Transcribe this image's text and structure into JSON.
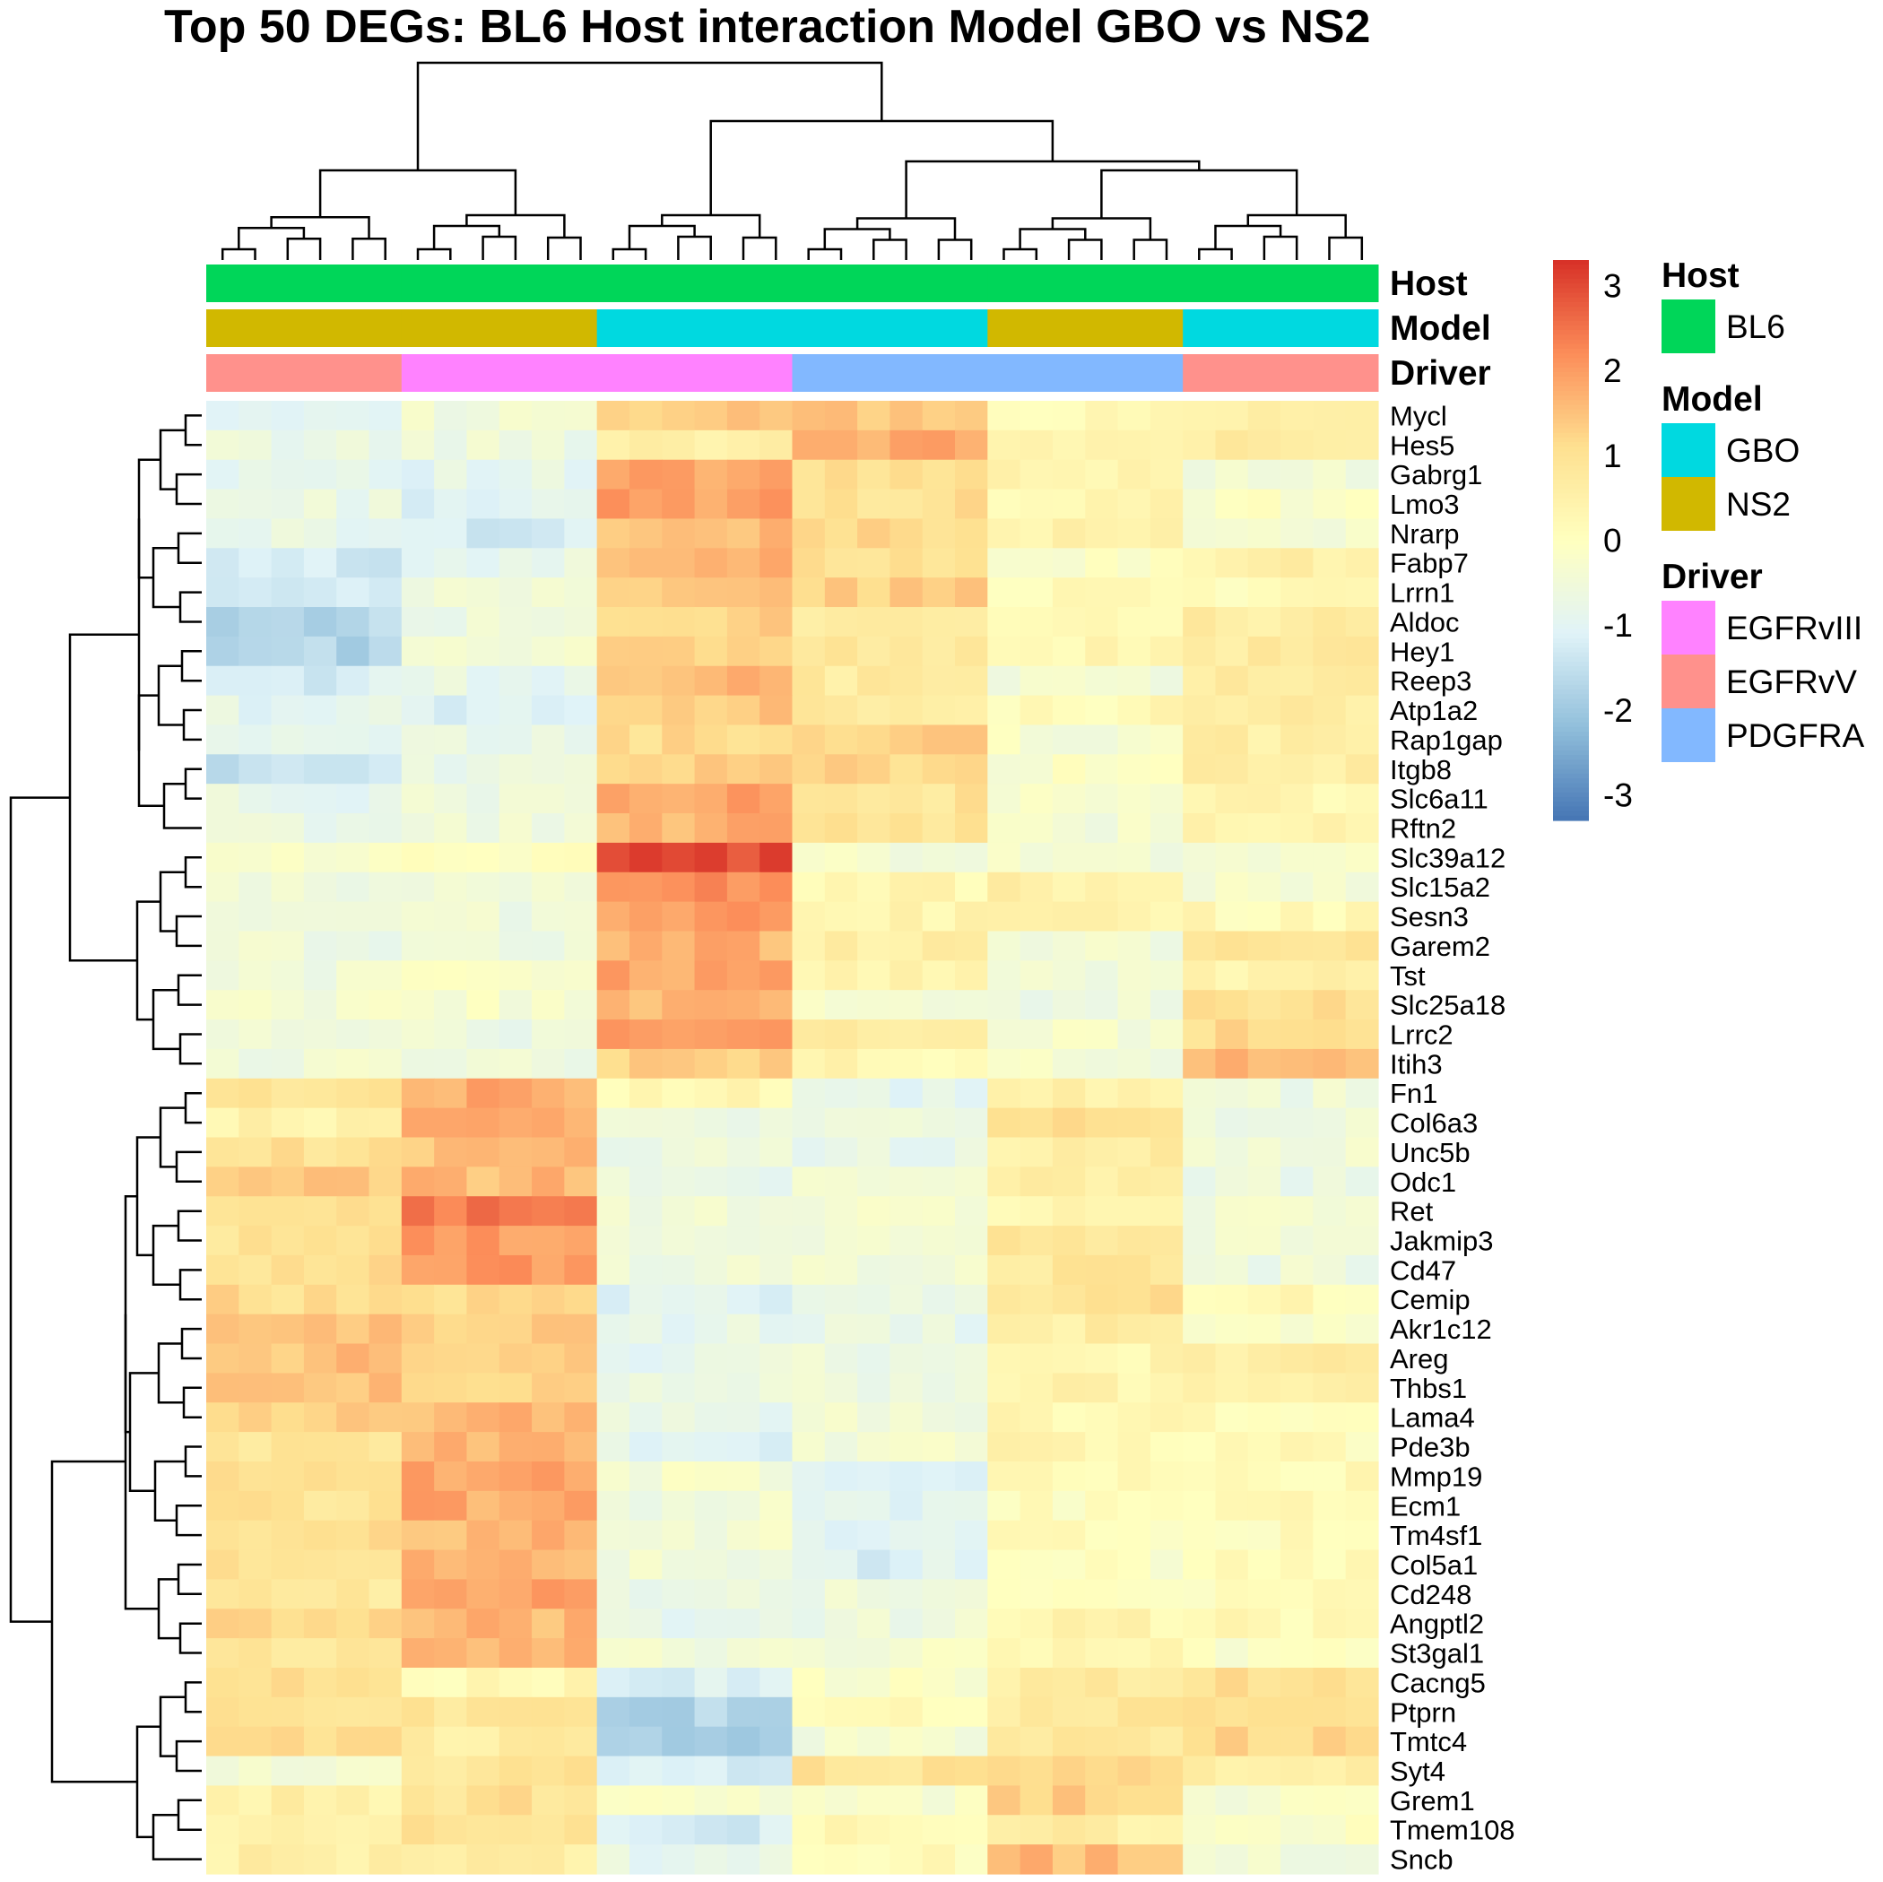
{
  "chart_data": {
    "type": "heatmap",
    "title": "Top 50 DEGs: BL6 Host interaction Model GBO vs NS2",
    "rows": [
      "Mycl",
      "Hes5",
      "Gabrg1",
      "Lmo3",
      "Nrarp",
      "Fabp7",
      "Lrrn1",
      "Aldoc",
      "Hey1",
      "Reep3",
      "Atp1a2",
      "Rap1gap",
      "Itgb8",
      "Slc6a11",
      "Rftn2",
      "Slc39a12",
      "Slc15a2",
      "Sesn3",
      "Garem2",
      "Tst",
      "Slc25a18",
      "Lrrc2",
      "Itih3",
      "Fn1",
      "Col6a3",
      "Unc5b",
      "Odc1",
      "Ret",
      "Jakmip3",
      "Cd47",
      "Cemip",
      "Akr1c12",
      "Areg",
      "Thbs1",
      "Lama4",
      "Pde3b",
      "Mmp19",
      "Ecm1",
      "Tm4sf1",
      "Col5a1",
      "Cd248",
      "Angptl2",
      "St3gal1",
      "Cacng5",
      "Ptprn",
      "Tmtc4",
      "Syt4",
      "Grem1",
      "Tmem108",
      "Sncb"
    ],
    "column_blocks": [
      {
        "model": "NS2",
        "driver": "EGFRvV",
        "host": "BL6",
        "n": 6
      },
      {
        "model": "NS2",
        "driver": "EGFRvIII",
        "host": "BL6",
        "n": 6
      },
      {
        "model": "GBO",
        "driver": "EGFRvIII",
        "host": "BL6",
        "n": 6
      },
      {
        "model": "GBO",
        "driver": "PDGFRA",
        "host": "BL6",
        "n": 6
      },
      {
        "model": "NS2",
        "driver": "PDGFRA",
        "host": "BL6",
        "n": 6
      },
      {
        "model": "GBO",
        "driver": "EGFRvV",
        "host": "BL6",
        "n": 6
      }
    ],
    "block_means": [
      [
        -0.8,
        -0.5,
        1.3,
        1.4,
        0.1,
        0.5
      ],
      [
        -0.7,
        -0.6,
        0.6,
        1.8,
        0.4,
        0.6
      ],
      [
        -0.8,
        -0.9,
        1.8,
        1.0,
        0.3,
        -0.4
      ],
      [
        -0.7,
        -1.0,
        1.9,
        1.0,
        0.3,
        -0.2
      ],
      [
        -0.8,
        -1.2,
        1.5,
        1.2,
        0.4,
        -0.4
      ],
      [
        -1.3,
        -0.8,
        1.6,
        1.1,
        -0.1,
        0.5
      ],
      [
        -1.4,
        -0.5,
        1.4,
        1.3,
        0.2,
        0.2
      ],
      [
        -1.7,
        -0.6,
        1.3,
        0.8,
        0.3,
        0.6
      ],
      [
        -1.7,
        -0.5,
        1.4,
        0.8,
        0.3,
        0.7
      ],
      [
        -1.2,
        -0.8,
        1.6,
        0.7,
        -0.4,
        0.6
      ],
      [
        -0.9,
        -1.1,
        1.4,
        0.8,
        0.2,
        0.7
      ],
      [
        -1.0,
        -0.8,
        1.1,
        1.3,
        -0.3,
        0.6
      ],
      [
        -1.5,
        -0.7,
        1.4,
        1.2,
        -0.2,
        0.6
      ],
      [
        -0.8,
        -0.6,
        1.9,
        0.9,
        -0.3,
        0.3
      ],
      [
        -0.7,
        -0.6,
        1.7,
        1.0,
        -0.4,
        0.5
      ],
      [
        -0.2,
        -0.1,
        2.9,
        -0.4,
        -0.4,
        -0.3
      ],
      [
        -0.6,
        -0.5,
        2.2,
        0.3,
        0.5,
        -0.4
      ],
      [
        -0.5,
        -0.6,
        2.0,
        0.4,
        0.3,
        0.2
      ],
      [
        -0.6,
        -0.6,
        1.7,
        0.6,
        -0.5,
        0.8
      ],
      [
        -0.5,
        -0.3,
        1.9,
        0.4,
        -0.4,
        0.4
      ],
      [
        -0.4,
        -0.3,
        1.7,
        -0.4,
        -0.6,
        1.0
      ],
      [
        -0.6,
        -0.6,
        1.9,
        0.6,
        -0.3,
        1.1
      ],
      [
        -0.5,
        -0.5,
        1.3,
        0.3,
        -0.4,
        1.6
      ],
      [
        1.0,
        1.8,
        0.3,
        -1.0,
        0.4,
        -0.6
      ],
      [
        0.4,
        1.8,
        -0.6,
        -0.6,
        1.0,
        -0.6
      ],
      [
        1.0,
        1.5,
        -0.6,
        -0.8,
        0.6,
        -0.5
      ],
      [
        1.3,
        1.6,
        -0.7,
        -0.5,
        0.6,
        -0.7
      ],
      [
        1.2,
        2.4,
        -0.5,
        -0.4,
        0.3,
        -0.4
      ],
      [
        0.9,
        2.0,
        -0.6,
        -0.5,
        0.9,
        -0.5
      ],
      [
        1.0,
        2.0,
        -0.5,
        -0.5,
        0.8,
        -0.6
      ],
      [
        1.1,
        1.2,
        -1.0,
        -0.8,
        1.0,
        0.2
      ],
      [
        1.4,
        1.3,
        -0.8,
        -0.8,
        0.6,
        -0.2
      ],
      [
        1.5,
        1.2,
        -0.8,
        -0.6,
        0.3,
        0.6
      ],
      [
        1.6,
        1.2,
        -0.7,
        -0.6,
        0.4,
        0.4
      ],
      [
        1.3,
        1.6,
        -0.8,
        -0.5,
        0.3,
        0.2
      ],
      [
        0.9,
        1.7,
        -1.0,
        -0.4,
        0.3,
        0.1
      ],
      [
        0.9,
        1.8,
        -0.3,
        -0.9,
        0.1,
        0.2
      ],
      [
        0.9,
        1.8,
        -0.5,
        -1.0,
        0.0,
        0.2
      ],
      [
        1.0,
        1.6,
        -0.4,
        -1.0,
        0.1,
        0.1
      ],
      [
        1.0,
        1.6,
        -0.5,
        -1.1,
        -0.1,
        0.1
      ],
      [
        0.8,
        2.0,
        -0.6,
        -0.6,
        0.0,
        0.1
      ],
      [
        1.1,
        1.6,
        -0.8,
        -0.6,
        0.3,
        0.2
      ],
      [
        0.9,
        1.6,
        -0.5,
        -0.3,
        0.4,
        -0.2
      ],
      [
        1.2,
        0.2,
        -1.2,
        -0.2,
        0.7,
        1.1
      ],
      [
        1.0,
        0.8,
        -1.7,
        0.1,
        0.8,
        0.9
      ],
      [
        1.0,
        0.6,
        -1.8,
        -0.4,
        0.8,
        1.2
      ],
      [
        -0.4,
        0.9,
        -1.2,
        0.9,
        1.2,
        0.5
      ],
      [
        0.5,
        1.0,
        -0.3,
        -0.2,
        1.3,
        -0.3
      ],
      [
        0.5,
        0.9,
        -1.2,
        0.3,
        0.6,
        -0.2
      ],
      [
        0.5,
        0.6,
        -0.8,
        0.1,
        1.6,
        -0.4
      ]
    ],
    "color_scale": {
      "min": -3.3,
      "max": 3.3,
      "ticks": [
        3,
        2,
        1,
        0,
        -1,
        -2,
        -3
      ],
      "colors": [
        "#4575b4",
        "#91bfdb",
        "#e0f3f8",
        "#ffffbf",
        "#fee090",
        "#fc8d59",
        "#d73027"
      ]
    },
    "annotations": [
      {
        "label": "Host",
        "categories": [
          {
            "name": "BL6",
            "color": "#00d659"
          }
        ]
      },
      {
        "label": "Model",
        "categories": [
          {
            "name": "GBO",
            "color": "#00d9e0"
          },
          {
            "name": "NS2",
            "color": "#d1b800"
          }
        ]
      },
      {
        "label": "Driver",
        "categories": [
          {
            "name": "EGFRvIII",
            "color": "#ff82ff"
          },
          {
            "name": "EGFRvV",
            "color": "#ff918c"
          },
          {
            "name": "PDGFRA",
            "color": "#82b8ff"
          }
        ]
      }
    ],
    "row_clusters": [
      [
        0,
        14
      ],
      [
        15,
        22
      ],
      [
        23,
        42
      ],
      [
        43,
        49
      ]
    ],
    "legend_placement": "right"
  }
}
